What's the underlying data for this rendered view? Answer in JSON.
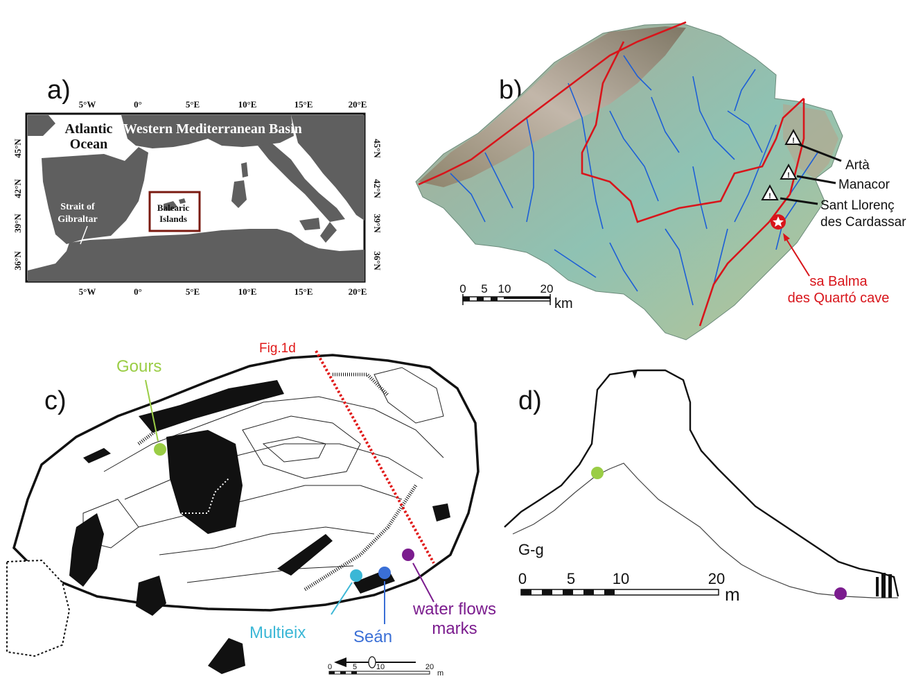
{
  "panel_a": {
    "label": "a)",
    "lon_ticks_top": [
      "5°W",
      "0°",
      "5°E",
      "10°E",
      "15°E",
      "20°E"
    ],
    "lon_ticks_bottom": [
      "5°W",
      "0°",
      "5°E",
      "10°E",
      "15°E",
      "20°E"
    ],
    "lat_ticks": [
      "45°N",
      "42°N",
      "39°N",
      "36°N"
    ],
    "atlantic_1": "Atlantic",
    "atlantic_2": "Ocean",
    "basin": "Western Mediterranean Basin",
    "strait_1": "Strait of",
    "strait_2": "Gibraltar",
    "balearic_1": "Balearic",
    "balearic_2": "Islands",
    "colors": {
      "land": "#5f5f5f",
      "sea": "#ffffff",
      "box": "#7a1a10"
    }
  },
  "panel_b": {
    "label": "b)",
    "towns": [
      "Artà",
      "Manacor",
      "Sant Llorenç",
      "des Cardassar"
    ],
    "cave_1": "sa Balma",
    "cave_2": "des Quartó cave",
    "scale_ticks": [
      "0",
      "5",
      "10",
      "20"
    ],
    "scale_unit": "km",
    "colors": {
      "rivers": "#1d5fd6",
      "watershed": "#d8151b",
      "cave_star": "#d8151b"
    }
  },
  "panel_c": {
    "label": "c)",
    "gours": "Gours",
    "fig_ref": "Fig.1d",
    "multieix": "Multieix",
    "sean": "Seán",
    "water_1": "water flows",
    "water_2": "marks",
    "scale_ticks": [
      "0",
      "5",
      "10",
      "20"
    ],
    "scale_unit": "m",
    "colors": {
      "gours": "#9acd45",
      "multieix": "#3bb7d6",
      "sean": "#3a6fd6",
      "water": "#7b1c8e",
      "section": "#e01818"
    }
  },
  "panel_d": {
    "label": "d)",
    "section": "G-g",
    "scale_ticks": [
      "0",
      "5",
      "10",
      "20"
    ],
    "scale_unit": "m"
  }
}
